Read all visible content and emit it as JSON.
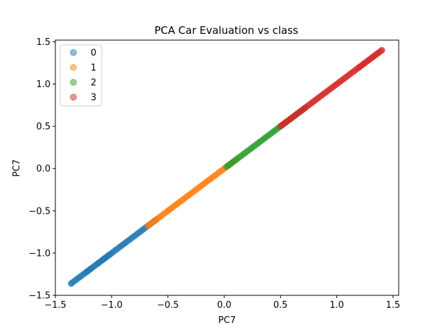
{
  "chart_data": {
    "type": "scatter",
    "title": "PCA Car Evaluation vs class",
    "xlabel": "PC7",
    "ylabel": "PC7",
    "xlim": [
      -1.5,
      1.55
    ],
    "ylim": [
      -1.5,
      1.52
    ],
    "xticks": [
      -1.5,
      -1.0,
      -0.5,
      0.0,
      0.5,
      1.0,
      1.5
    ],
    "xtick_labels": [
      "−1.5",
      "−1.0",
      "−0.5",
      "0.0",
      "0.5",
      "1.0",
      "1.5"
    ],
    "yticks": [
      -1.5,
      -1.0,
      -0.5,
      0.0,
      0.5,
      1.0,
      1.5
    ],
    "ytick_labels": [
      "−1.5",
      "−1.0",
      "−0.5",
      "0.0",
      "0.5",
      "1.0",
      "1.5"
    ],
    "grid": false,
    "legend_position": "top-left",
    "series": [
      {
        "name": "0",
        "color": "#1f77b4",
        "range": [
          -1.36,
          -0.6
        ],
        "outliers": [
          -1.36,
          -1.22,
          -1.19,
          -1.12,
          -1.08,
          -1.06,
          -1.04,
          -1.02
        ]
      },
      {
        "name": "1",
        "color": "#ff7f0e",
        "range": [
          -0.68,
          0.12
        ],
        "outliers": []
      },
      {
        "name": "2",
        "color": "#2ca02c",
        "range": [
          0.02,
          0.72
        ],
        "outliers": []
      },
      {
        "name": "3",
        "color": "#d62728",
        "range": [
          0.5,
          1.4
        ],
        "outliers": [
          1.2,
          1.24,
          1.28,
          1.32,
          1.36,
          1.4
        ]
      }
    ]
  }
}
